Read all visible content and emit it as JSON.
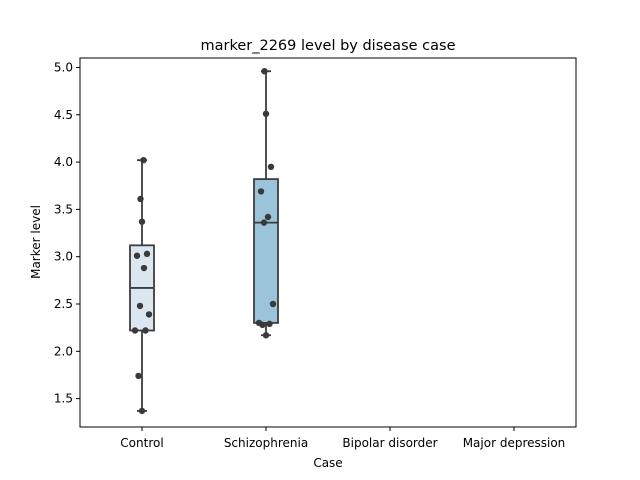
{
  "chart_data": {
    "type": "box",
    "title": "marker_2269 level by disease case",
    "xlabel": "Case",
    "ylabel": "Marker level",
    "categories": [
      "Control",
      "Schizophrenia",
      "Bipolar disorder",
      "Major depression"
    ],
    "ylim": [
      1.2,
      5.1
    ],
    "yticks": [
      "1.5",
      "2.0",
      "2.5",
      "3.0",
      "3.5",
      "4.0",
      "4.5",
      "5.0"
    ],
    "grid": false,
    "legend": "none",
    "series": [
      {
        "category": "Control",
        "color": "#dce6f1",
        "box": {
          "whisker_low": 1.37,
          "q1": 2.22,
          "median": 2.67,
          "q3": 3.12,
          "whisker_high": 4.02
        },
        "points": [
          1.37,
          1.74,
          2.22,
          2.22,
          2.39,
          2.48,
          2.88,
          3.01,
          3.03,
          3.37,
          3.61,
          4.02
        ]
      },
      {
        "category": "Schizophrenia",
        "color": "#9bc3da",
        "box": {
          "whisker_low": 2.17,
          "q1": 2.3,
          "median": 3.36,
          "q3": 3.82,
          "whisker_high": 4.96
        },
        "points": [
          2.17,
          2.28,
          2.29,
          2.3,
          2.5,
          3.36,
          3.42,
          3.69,
          3.95,
          4.51,
          4.96
        ]
      },
      {
        "category": "Bipolar disorder",
        "color": "",
        "box": null,
        "points": []
      },
      {
        "category": "Major depression",
        "color": "",
        "box": null,
        "points": []
      }
    ]
  }
}
